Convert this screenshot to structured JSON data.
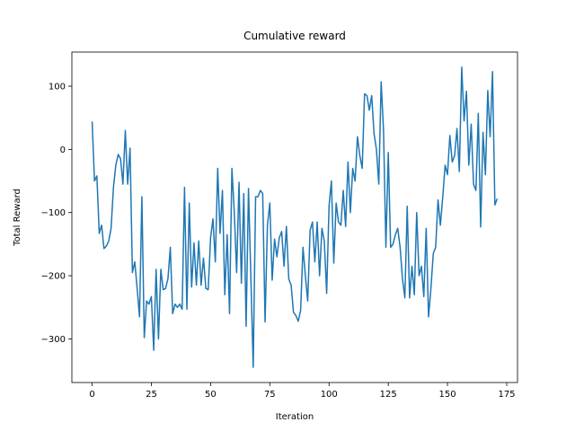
{
  "chart_data": {
    "type": "line",
    "title": "Cumulative reward",
    "x_label": "Iteration",
    "y_label": "Total Reward",
    "x": [
      0,
      1,
      2,
      3,
      4,
      5,
      6,
      7,
      8,
      9,
      10,
      11,
      12,
      13,
      14,
      15,
      16,
      17,
      18,
      19,
      20,
      21,
      22,
      23,
      24,
      25,
      26,
      27,
      28,
      29,
      30,
      31,
      32,
      33,
      34,
      35,
      36,
      37,
      38,
      39,
      40,
      41,
      42,
      43,
      44,
      45,
      46,
      47,
      48,
      49,
      50,
      51,
      52,
      53,
      54,
      55,
      56,
      57,
      58,
      59,
      60,
      61,
      62,
      63,
      64,
      65,
      66,
      67,
      68,
      69,
      70,
      71,
      72,
      73,
      74,
      75,
      76,
      77,
      78,
      79,
      80,
      81,
      82,
      83,
      84,
      85,
      86,
      87,
      88,
      89,
      90,
      91,
      92,
      93,
      94,
      95,
      96,
      97,
      98,
      99,
      100,
      101,
      102,
      103,
      104,
      105,
      106,
      107,
      108,
      109,
      110,
      111,
      112,
      113,
      114,
      115,
      116,
      117,
      118,
      119,
      120,
      121,
      122,
      123,
      124,
      125,
      126,
      127,
      128,
      129,
      130,
      131,
      132,
      133,
      134,
      135,
      136,
      137,
      138,
      139,
      140,
      141,
      142,
      143,
      144,
      145,
      146,
      147,
      148,
      149,
      150,
      151,
      152,
      153,
      154,
      155,
      156,
      157,
      158,
      159,
      160,
      161,
      162,
      163,
      164,
      165,
      166,
      167,
      168,
      169,
      170,
      171
    ],
    "series": [
      {
        "name": "Total Reward",
        "color": "#1f77b4",
        "values": [
          44,
          -50,
          -42,
          -133,
          -120,
          -157,
          -153,
          -145,
          -125,
          -60,
          -25,
          -8,
          -15,
          -55,
          30,
          -55,
          2,
          -195,
          -178,
          -220,
          -265,
          -75,
          -298,
          -240,
          -245,
          -233,
          -318,
          -190,
          -300,
          -190,
          -222,
          -220,
          -205,
          -155,
          -260,
          -245,
          -250,
          -245,
          -253,
          -60,
          -253,
          -85,
          -218,
          -148,
          -215,
          -145,
          -215,
          -172,
          -220,
          -222,
          -140,
          -110,
          -178,
          -30,
          -133,
          -65,
          -230,
          -135,
          -260,
          -30,
          -100,
          -195,
          -52,
          -212,
          -70,
          -280,
          -62,
          -202,
          -345,
          -75,
          -75,
          -65,
          -70,
          -273,
          -120,
          -85,
          -207,
          -142,
          -170,
          -140,
          -130,
          -185,
          -122,
          -205,
          -215,
          -258,
          -263,
          -272,
          -255,
          -155,
          -200,
          -240,
          -128,
          -115,
          -178,
          -115,
          -200,
          -125,
          -145,
          -228,
          -90,
          -50,
          -180,
          -85,
          -115,
          -120,
          -65,
          -122,
          -20,
          -100,
          -30,
          -50,
          20,
          -10,
          -30,
          88,
          85,
          62,
          85,
          25,
          0,
          -55,
          107,
          30,
          -155,
          -5,
          -155,
          -150,
          -135,
          -125,
          -155,
          -205,
          -235,
          -90,
          -235,
          -185,
          -230,
          -100,
          -200,
          -185,
          -233,
          -125,
          -265,
          -220,
          -165,
          -155,
          -80,
          -120,
          -75,
          -25,
          -40,
          22,
          -20,
          -10,
          33,
          -35,
          130,
          45,
          92,
          -25,
          40,
          -55,
          -65,
          57,
          -123,
          27,
          -40,
          93,
          20,
          123,
          -88,
          -78
        ]
      }
    ],
    "xlim": [
      -8.55,
      179.55
    ],
    "ylim": [
      -369,
      154
    ],
    "xticks": [
      0,
      25,
      50,
      75,
      100,
      125,
      150,
      175
    ],
    "yticks": [
      {
        "value": -300,
        "label": "−300"
      },
      {
        "value": -200,
        "label": "−200"
      },
      {
        "value": -100,
        "label": "−100"
      },
      0,
      100
    ]
  }
}
